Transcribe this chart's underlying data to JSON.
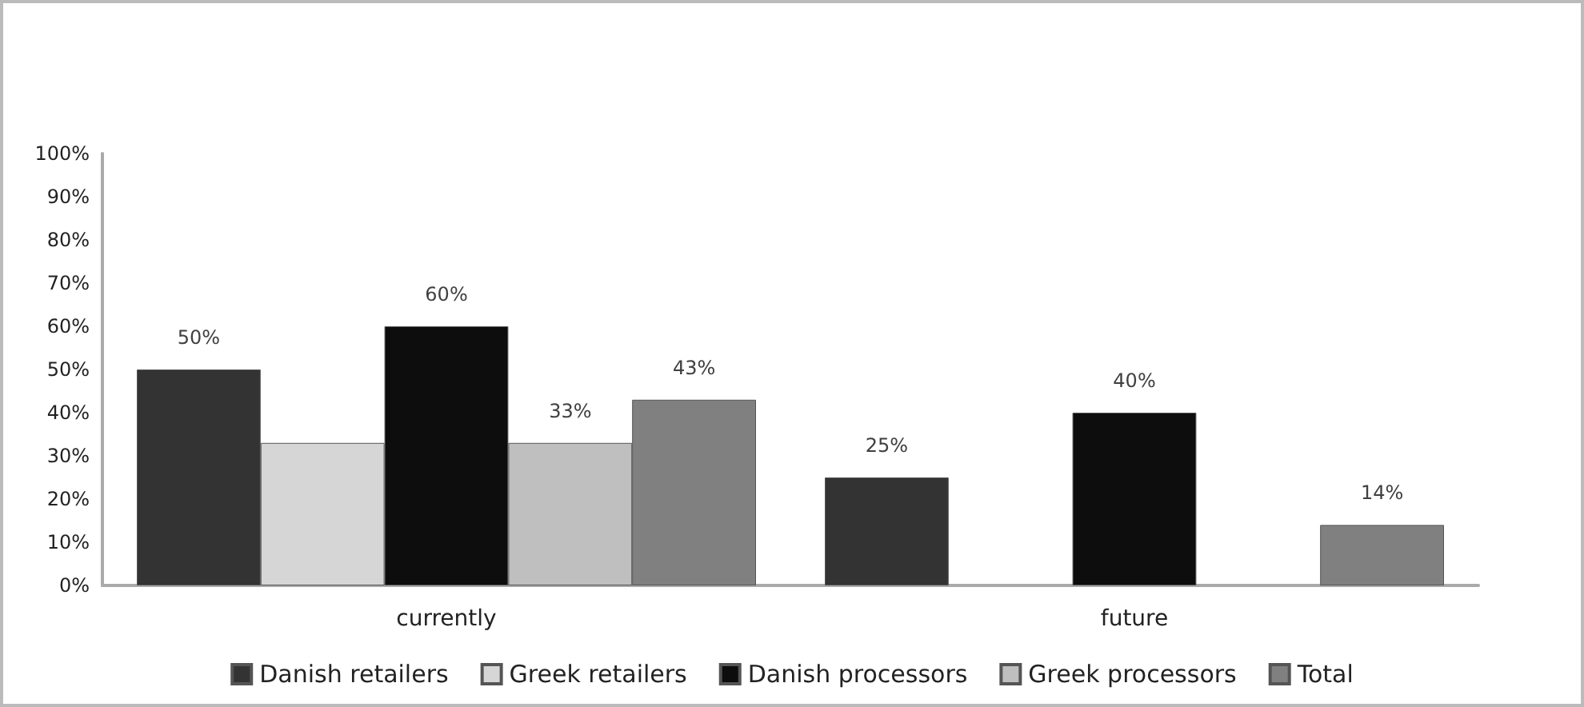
{
  "chart_data": {
    "type": "bar",
    "categories": [
      "currently",
      "future"
    ],
    "series": [
      {
        "name": "Danish retailers",
        "color": "#333333",
        "values": [
          50,
          25
        ],
        "value_labels": [
          "50%",
          "25%"
        ]
      },
      {
        "name": "Greek retailers",
        "color": "#d6d6d6",
        "values": [
          33,
          null
        ],
        "value_labels": [
          null,
          null
        ]
      },
      {
        "name": "Danish processors",
        "color": "#0d0d0d",
        "values": [
          60,
          40
        ],
        "value_labels": [
          "60%",
          "40%"
        ]
      },
      {
        "name": "Greek processors",
        "color": "#bfbfbf",
        "values": [
          33,
          null
        ],
        "value_labels": [
          "33%",
          null
        ]
      },
      {
        "name": "Total",
        "color": "#808080",
        "values": [
          43,
          14
        ],
        "value_labels": [
          "43%",
          "14%"
        ]
      }
    ],
    "ylim": [
      0,
      100
    ],
    "yticks": [
      {
        "value": 0,
        "label": "0%"
      },
      {
        "value": 10,
        "label": "10%"
      },
      {
        "value": 20,
        "label": "20%"
      },
      {
        "value": 30,
        "label": "30%"
      },
      {
        "value": 40,
        "label": "40%"
      },
      {
        "value": 50,
        "label": "50%"
      },
      {
        "value": 60,
        "label": "60%"
      },
      {
        "value": 70,
        "label": "70%"
      },
      {
        "value": 80,
        "label": "80%"
      },
      {
        "value": 90,
        "label": "90%"
      },
      {
        "value": 100,
        "label": "100%"
      }
    ],
    "grid": false,
    "legend": "bottom"
  }
}
